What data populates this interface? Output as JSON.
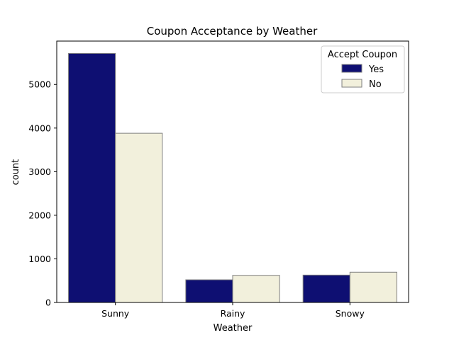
{
  "chart_data": {
    "type": "bar",
    "title": "Coupon Acceptance by Weather",
    "xlabel": "Weather",
    "ylabel": "count",
    "categories": [
      "Sunny",
      "Rainy",
      "Snowy"
    ],
    "series": [
      {
        "name": "Yes",
        "values": [
          5712,
          520,
          628
        ],
        "color": "#0e0f72"
      },
      {
        "name": "No",
        "values": [
          3881,
          622,
          694
        ],
        "color": "#f2f0dc"
      }
    ],
    "ylim": [
      0,
      5995
    ],
    "yticks": [
      0,
      1000,
      2000,
      3000,
      4000,
      5000
    ],
    "legend": {
      "title": "Accept Coupon",
      "position": "top-right"
    },
    "grid": false,
    "bar_edge_color": "#7f7f7f"
  }
}
